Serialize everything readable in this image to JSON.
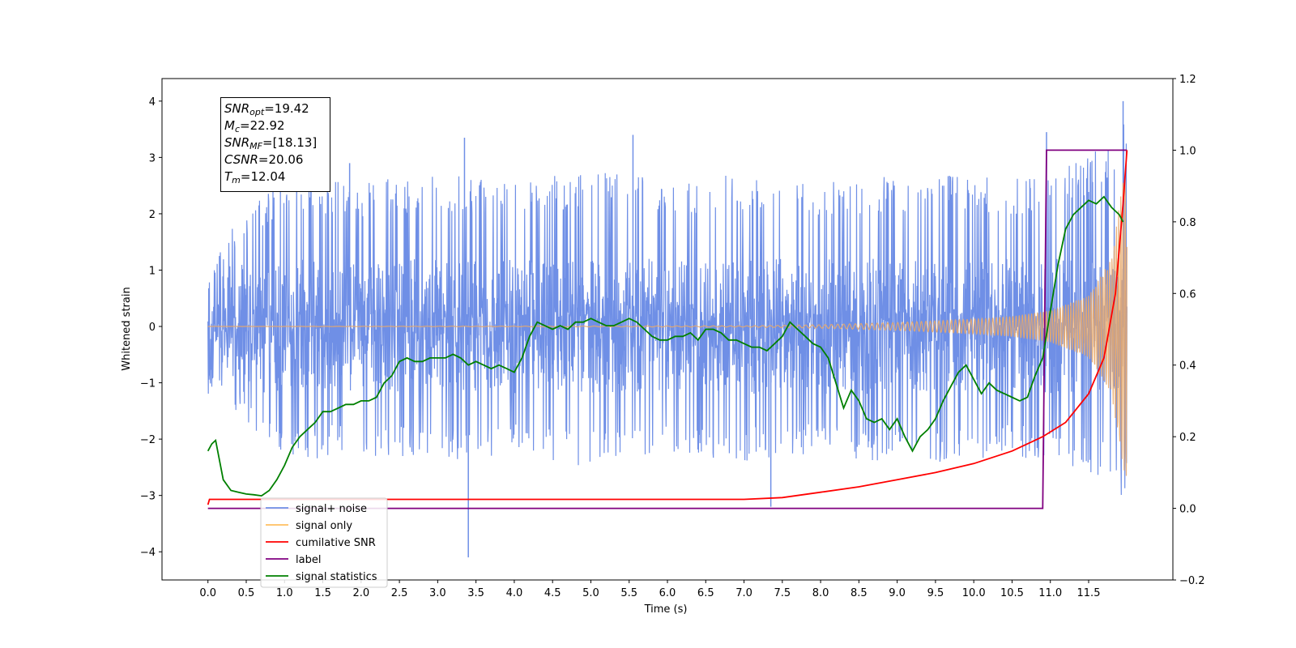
{
  "chart_data": {
    "type": "line",
    "xlabel": "Time (s)",
    "ylabel_left": "Whitened strain",
    "ylabel_right": "",
    "xlim": [
      -0.6,
      12.6
    ],
    "ylim_left": [
      -4.5,
      4.4
    ],
    "ylim_right": [
      -0.2,
      1.2
    ],
    "x_ticks": [
      0.0,
      0.5,
      1.0,
      1.5,
      2.0,
      2.5,
      3.0,
      3.5,
      4.0,
      4.5,
      5.0,
      5.5,
      6.0,
      6.5,
      7.0,
      7.5,
      8.0,
      8.5,
      9.0,
      9.5,
      10.0,
      10.5,
      11.0,
      11.5
    ],
    "x_tick_labels": [
      "0.0",
      "0.5",
      "1.0",
      "1.5",
      "2.0",
      "2.5",
      "3.0",
      "3.5",
      "4.0",
      "4.5",
      "5.0",
      "5.5",
      "6.0",
      "6.5",
      "7.0",
      "7.5",
      "8.0",
      "8.5",
      "9.0",
      "9.5",
      "10.0",
      "10.5",
      "11.0",
      "11.5"
    ],
    "y_left_ticks": [
      -4,
      -3,
      -2,
      -1,
      0,
      1,
      2,
      3,
      4
    ],
    "y_left_tick_labels": [
      "−4",
      "−3",
      "−2",
      "−1",
      "0",
      "1",
      "2",
      "3",
      "4"
    ],
    "y_right_ticks": [
      -0.2,
      0.0,
      0.2,
      0.4,
      0.6,
      0.8,
      1.0,
      1.2
    ],
    "y_right_tick_labels": [
      "−0.2",
      "0.0",
      "0.2",
      "0.4",
      "0.6",
      "0.8",
      "1.0",
      "1.2"
    ],
    "grid": false,
    "legend_position": "lower-left",
    "colors": {
      "signal_noise": "#6f8fe6",
      "signal_only": "#e8a96a",
      "cumulative_snr": "#ff0000",
      "label": "#800080",
      "signal_statistics": "#008000"
    },
    "legend": [
      {
        "name": "signal+ noise",
        "color": "#6f8fe6"
      },
      {
        "name": "signal only",
        "color": "#ffbf60"
      },
      {
        "name": "cumilative SNR",
        "color": "#ff0000"
      },
      {
        "name": "label",
        "color": "#800080"
      },
      {
        "name": "signal statistics",
        "color": "#008000"
      }
    ],
    "series": [
      {
        "name": "signal+ noise",
        "axis": "left",
        "envelope": {
          "x": [
            0.0,
            1.0,
            2.0,
            3.0,
            4.0,
            5.0,
            6.0,
            7.0,
            8.0,
            9.0,
            10.0,
            10.5,
            11.0,
            11.5,
            11.8,
            11.95,
            12.0
          ],
          "upper": [
            1.3,
            2.7,
            2.6,
            2.7,
            2.6,
            2.8,
            2.6,
            2.7,
            2.6,
            2.7,
            2.7,
            2.6,
            2.8,
            3.0,
            3.4,
            4.0,
            3.2
          ],
          "lower": [
            -1.0,
            -2.4,
            -2.3,
            -2.4,
            -2.3,
            -2.5,
            -2.3,
            -2.4,
            -2.3,
            -2.5,
            -2.4,
            -2.3,
            -2.4,
            -2.6,
            -2.8,
            -3.2,
            -2.5
          ]
        },
        "spikes": [
          [
            3.4,
            -4.1
          ],
          [
            5.55,
            3.4
          ],
          [
            3.35,
            3.35
          ],
          [
            11.95,
            4.0
          ],
          [
            7.35,
            -3.2
          ],
          [
            10.95,
            3.45
          ],
          [
            1.85,
            2.9
          ],
          [
            0.15,
            1.25
          ]
        ]
      },
      {
        "name": "signal only",
        "axis": "left",
        "amplitude": {
          "x": [
            0.0,
            7.0,
            8.0,
            9.0,
            10.0,
            10.5,
            11.0,
            11.5,
            11.8,
            11.95,
            12.0
          ],
          "y": [
            0.0,
            0.01,
            0.03,
            0.07,
            0.13,
            0.18,
            0.28,
            0.55,
            1.2,
            2.6,
            2.8
          ]
        }
      },
      {
        "name": "cumilative SNR",
        "axis": "right",
        "x": [
          0.0,
          0.02,
          7.0,
          7.5,
          8.0,
          8.5,
          9.0,
          9.5,
          10.0,
          10.5,
          10.9,
          11.2,
          11.5,
          11.7,
          11.85,
          11.95,
          12.0
        ],
        "y": [
          0.01,
          0.025,
          0.025,
          0.03,
          0.045,
          0.06,
          0.08,
          0.1,
          0.125,
          0.16,
          0.2,
          0.24,
          0.32,
          0.42,
          0.6,
          0.85,
          1.0
        ]
      },
      {
        "name": "label",
        "axis": "right",
        "x": [
          0.0,
          10.9,
          10.95,
          12.0
        ],
        "y": [
          0.0,
          0.0,
          1.0,
          1.0
        ]
      },
      {
        "name": "signal statistics",
        "axis": "right",
        "x": [
          0.0,
          0.05,
          0.1,
          0.2,
          0.3,
          0.4,
          0.5,
          0.6,
          0.7,
          0.8,
          0.9,
          1.0,
          1.1,
          1.2,
          1.3,
          1.4,
          1.5,
          1.6,
          1.7,
          1.8,
          1.9,
          2.0,
          2.1,
          2.2,
          2.3,
          2.4,
          2.5,
          2.6,
          2.7,
          2.8,
          2.9,
          3.0,
          3.1,
          3.2,
          3.3,
          3.4,
          3.5,
          3.6,
          3.7,
          3.8,
          3.9,
          4.0,
          4.1,
          4.2,
          4.3,
          4.4,
          4.5,
          4.6,
          4.7,
          4.8,
          4.9,
          5.0,
          5.1,
          5.2,
          5.3,
          5.4,
          5.5,
          5.6,
          5.7,
          5.8,
          5.9,
          6.0,
          6.1,
          6.2,
          6.3,
          6.4,
          6.5,
          6.6,
          6.7,
          6.8,
          6.9,
          7.0,
          7.1,
          7.2,
          7.3,
          7.4,
          7.5,
          7.6,
          7.7,
          7.8,
          7.9,
          8.0,
          8.1,
          8.2,
          8.3,
          8.4,
          8.5,
          8.6,
          8.7,
          8.8,
          8.9,
          9.0,
          9.1,
          9.2,
          9.3,
          9.4,
          9.5,
          9.6,
          9.7,
          9.8,
          9.9,
          10.0,
          10.1,
          10.2,
          10.3,
          10.4,
          10.5,
          10.6,
          10.7,
          10.8,
          10.9,
          11.0,
          11.1,
          11.2,
          11.3,
          11.4,
          11.5,
          11.6,
          11.7,
          11.8,
          11.9,
          11.95
        ],
        "y": [
          0.16,
          0.18,
          0.19,
          0.08,
          0.05,
          0.045,
          0.04,
          0.038,
          0.035,
          0.05,
          0.08,
          0.12,
          0.17,
          0.2,
          0.22,
          0.24,
          0.27,
          0.27,
          0.28,
          0.29,
          0.29,
          0.3,
          0.3,
          0.31,
          0.35,
          0.37,
          0.41,
          0.42,
          0.41,
          0.41,
          0.42,
          0.42,
          0.42,
          0.43,
          0.42,
          0.4,
          0.41,
          0.4,
          0.39,
          0.4,
          0.39,
          0.38,
          0.42,
          0.48,
          0.52,
          0.51,
          0.5,
          0.51,
          0.5,
          0.52,
          0.52,
          0.53,
          0.52,
          0.51,
          0.51,
          0.52,
          0.53,
          0.52,
          0.5,
          0.48,
          0.47,
          0.47,
          0.48,
          0.48,
          0.49,
          0.47,
          0.5,
          0.5,
          0.49,
          0.47,
          0.47,
          0.46,
          0.45,
          0.45,
          0.44,
          0.46,
          0.48,
          0.52,
          0.5,
          0.48,
          0.46,
          0.45,
          0.42,
          0.35,
          0.28,
          0.33,
          0.3,
          0.25,
          0.24,
          0.25,
          0.22,
          0.25,
          0.2,
          0.16,
          0.2,
          0.22,
          0.25,
          0.3,
          0.34,
          0.38,
          0.4,
          0.36,
          0.32,
          0.35,
          0.33,
          0.32,
          0.31,
          0.3,
          0.31,
          0.37,
          0.42,
          0.55,
          0.68,
          0.78,
          0.82,
          0.84,
          0.86,
          0.85,
          0.87,
          0.84,
          0.82,
          0.8
        ]
      }
    ]
  },
  "stats_box": {
    "snr_opt_label": "SNR",
    "snr_opt_sub": "opt",
    "snr_opt_value": "=19.42",
    "mc_label": "M",
    "mc_sub": "c",
    "mc_value": "=22.92",
    "snr_mf_label": "SNR",
    "snr_mf_sub": "MF",
    "snr_mf_value": "=[18.13]",
    "csnr_label": "CSNR",
    "csnr_value": "=20.06",
    "tm_label": "T",
    "tm_sub": "m",
    "tm_value": "=12.04"
  }
}
